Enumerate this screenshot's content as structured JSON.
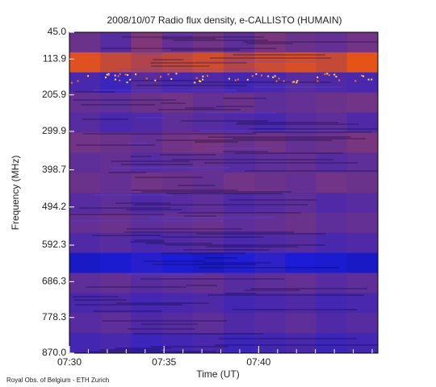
{
  "chart_data": {
    "type": "spectrogram",
    "title": "2008/10/07  Radio flux density, e-CALLISTO (HUMAIN)",
    "x_label": "Time (UT)",
    "y_label": "Frequency (MHz)",
    "credit": "Royal Obs. of Belgium - ETH Zurich",
    "xlim": [
      450,
      466.3
    ],
    "xticks": [
      {
        "value": 450,
        "label": "07:30"
      },
      {
        "value": 455,
        "label": "07:35"
      },
      {
        "value": 460,
        "label": "07:40"
      }
    ],
    "ylim": [
      45,
      870
    ],
    "yticks": [
      {
        "value": 45,
        "label": "45.0"
      },
      113.9,
      205.9,
      299.9,
      398.7,
      494.2,
      592.3,
      686.3,
      778.3,
      {
        "value": 870,
        "label": "870.0"
      }
    ],
    "y_reversed": true,
    "colors": [
      "#000018",
      "#1c1cd8",
      "#ff5a00",
      "#ffff90"
    ],
    "values": [
      [
        0.45,
        0.42,
        0.48,
        0.44,
        0.46,
        0.43,
        0.47,
        0.45,
        0.44,
        0.46
      ],
      [
        0.62,
        0.58,
        0.55,
        0.57,
        0.6,
        0.56,
        0.59,
        0.61,
        0.58,
        0.63
      ],
      [
        0.4,
        0.38,
        0.42,
        0.4,
        0.41,
        0.39,
        0.4,
        0.42,
        0.41,
        0.4
      ],
      [
        0.44,
        0.43,
        0.45,
        0.46,
        0.44,
        0.45,
        0.43,
        0.44,
        0.45,
        0.46
      ],
      [
        0.42,
        0.4,
        0.41,
        0.43,
        0.42,
        0.41,
        0.4,
        0.42,
        0.43,
        0.41
      ],
      [
        0.46,
        0.45,
        0.44,
        0.46,
        0.47,
        0.45,
        0.46,
        0.44,
        0.45,
        0.47
      ],
      [
        0.43,
        0.44,
        0.42,
        0.43,
        0.44,
        0.42,
        0.43,
        0.44,
        0.42,
        0.43
      ],
      [
        0.45,
        0.44,
        0.46,
        0.45,
        0.44,
        0.46,
        0.45,
        0.44,
        0.46,
        0.45
      ],
      [
        0.42,
        0.43,
        0.41,
        0.42,
        0.43,
        0.41,
        0.42,
        0.43,
        0.41,
        0.42
      ],
      [
        0.44,
        0.45,
        0.43,
        0.44,
        0.45,
        0.43,
        0.44,
        0.45,
        0.43,
        0.44
      ],
      [
        0.41,
        0.42,
        0.4,
        0.41,
        0.42,
        0.4,
        0.41,
        0.42,
        0.4,
        0.41
      ],
      [
        0.3,
        0.32,
        0.35,
        0.33,
        0.31,
        0.34,
        0.36,
        0.33,
        0.32,
        0.3
      ],
      [
        0.43,
        0.44,
        0.42,
        0.43,
        0.44,
        0.42,
        0.43,
        0.44,
        0.42,
        0.43
      ],
      [
        0.4,
        0.41,
        0.39,
        0.4,
        0.41,
        0.39,
        0.4,
        0.41,
        0.39,
        0.4
      ],
      [
        0.42,
        0.43,
        0.41,
        0.42,
        0.43,
        0.41,
        0.42,
        0.43,
        0.41,
        0.42
      ],
      [
        0.39,
        0.4,
        0.38,
        0.39,
        0.4,
        0.38,
        0.39,
        0.4,
        0.38,
        0.39
      ]
    ]
  }
}
